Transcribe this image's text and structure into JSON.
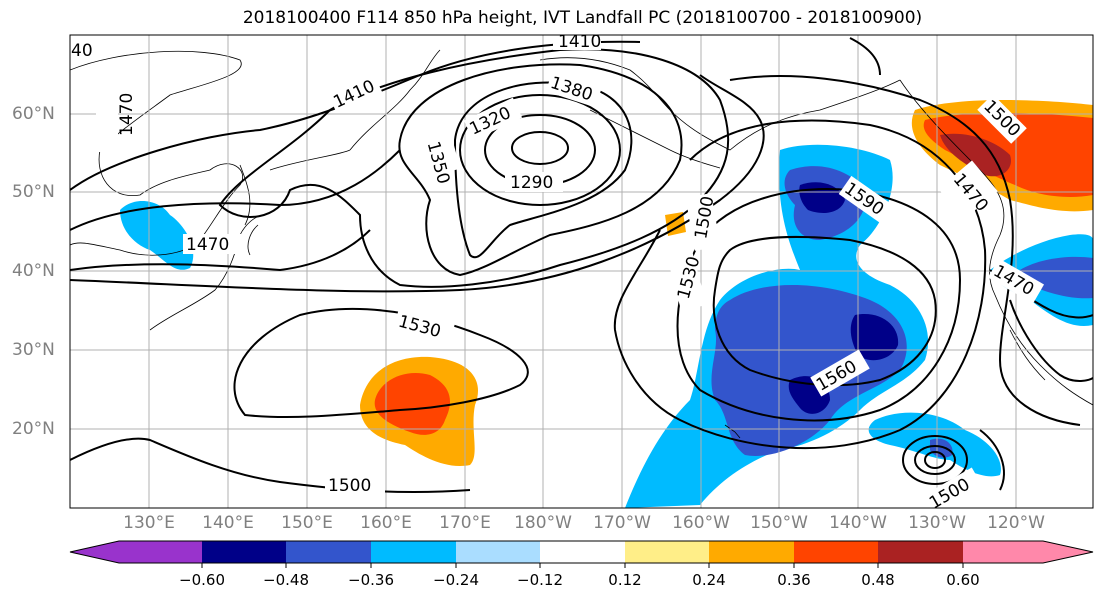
{
  "title": "2018100400 F114 850 hPa height, IVT Landfall PC (2018100700 - 2018100900)",
  "lat_labels": [
    "60°N",
    "50°N",
    "40°N",
    "30°N",
    "20°N"
  ],
  "lon_labels": [
    "130°E",
    "140°E",
    "150°E",
    "160°E",
    "170°E",
    "180°W",
    "170°W",
    "160°W",
    "150°W",
    "140°W",
    "130°W",
    "120°W"
  ],
  "contour_labels": [
    "1410",
    "1380",
    "1320",
    "1350",
    "1290",
    "1410",
    "1470",
    "1470",
    "1530",
    "1500",
    "1530",
    "1590",
    "1560",
    "1500",
    "1470",
    "1470",
    "1500",
    "1500",
    "40"
  ],
  "colorbar": {
    "ticks": [
      "−0.60",
      "−0.48",
      "−0.36",
      "−0.24",
      "−0.12",
      "0.12",
      "0.24",
      "0.36",
      "0.48",
      "0.60"
    ],
    "colors": [
      "#9933cc",
      "#000088",
      "#3355cc",
      "#00bbff",
      "#aaddff",
      "#ffffff",
      "#ffee88",
      "#ffaa00",
      "#ff4400",
      "#aa2222",
      "#ff88aa"
    ]
  }
}
